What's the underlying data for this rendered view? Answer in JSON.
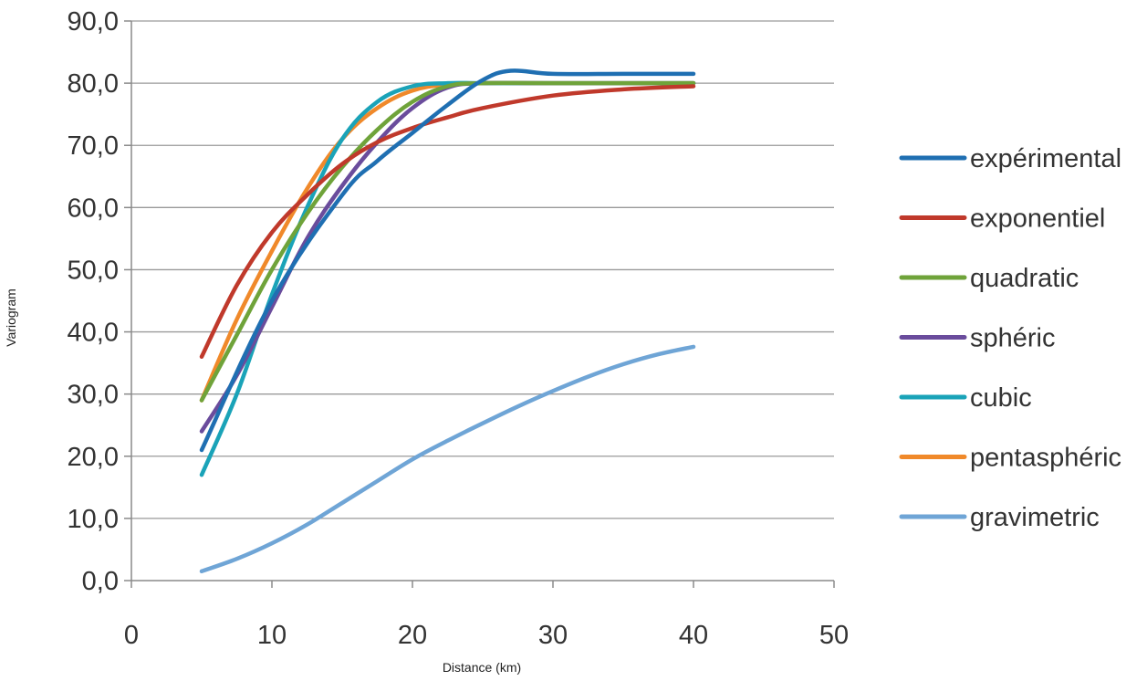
{
  "chart_data": {
    "type": "line",
    "title": "",
    "xlabel": "Distance (km)",
    "ylabel": "Variogram",
    "xlim": [
      0,
      50
    ],
    "ylim": [
      0,
      90
    ],
    "x_ticks": [
      {
        "value": 0,
        "label": "0"
      },
      {
        "value": 10,
        "label": "10"
      },
      {
        "value": 20,
        "label": "20"
      },
      {
        "value": 30,
        "label": "30"
      },
      {
        "value": 40,
        "label": "40"
      },
      {
        "value": 50,
        "label": "50"
      }
    ],
    "y_ticks": [
      {
        "value": 0,
        "label": "0,0"
      },
      {
        "value": 10,
        "label": "10,0"
      },
      {
        "value": 20,
        "label": "20,0"
      },
      {
        "value": 30,
        "label": "30,0"
      },
      {
        "value": 40,
        "label": "40,0"
      },
      {
        "value": 50,
        "label": "50,0"
      },
      {
        "value": 60,
        "label": "60,0"
      },
      {
        "value": 70,
        "label": "70,0"
      },
      {
        "value": 80,
        "label": "80,0"
      },
      {
        "value": 90,
        "label": "90,0"
      }
    ],
    "grid": "horizontal",
    "legend_position": "right",
    "series": [
      {
        "name": "expérimental",
        "color": "#1f6fb2",
        "x": [
          5,
          10,
          15,
          17.5,
          20,
          22.5,
          25,
          27,
          30,
          35,
          40
        ],
        "y": [
          21,
          45,
          62,
          67.5,
          72,
          76.5,
          80.5,
          82,
          81.5,
          81.5,
          81.5
        ]
      },
      {
        "name": "exponentiel",
        "color": "#c0392b",
        "x": [
          5,
          7.5,
          10,
          12.5,
          15,
          17.5,
          20,
          22.5,
          25,
          30,
          35,
          40
        ],
        "y": [
          36,
          47.5,
          56,
          62,
          67,
          70.5,
          72.8,
          74.5,
          76,
          78,
          79,
          79.5
        ]
      },
      {
        "name": "quadratic",
        "color": "#6fa33a",
        "x": [
          5,
          7.5,
          10,
          12.5,
          15,
          17.5,
          20,
          22.5,
          25,
          30,
          40
        ],
        "y": [
          29,
          39.5,
          50,
          59,
          66.5,
          72.5,
          77,
          79.5,
          80,
          80,
          80
        ]
      },
      {
        "name": "sphéric",
        "color": "#6a4c9c",
        "x": [
          5,
          7.5,
          10,
          12.5,
          15,
          17.5,
          20,
          22.5,
          25,
          30,
          40
        ],
        "y": [
          24,
          33,
          44,
          55,
          63.5,
          70.5,
          76,
          79.3,
          80,
          80,
          80
        ]
      },
      {
        "name": "cubic",
        "color": "#1aa3b8",
        "x": [
          5,
          7.5,
          10,
          12.5,
          15,
          17.5,
          20,
          22.5,
          25,
          30,
          40
        ],
        "y": [
          17,
          30,
          46,
          60,
          71,
          77,
          79.5,
          80,
          80,
          80,
          80
        ]
      },
      {
        "name": "pentasphéric",
        "color": "#f0892a",
        "x": [
          5,
          7.5,
          10,
          12.5,
          15,
          17.5,
          20,
          22.5,
          25,
          30,
          40
        ],
        "y": [
          29,
          42,
          53,
          63,
          71,
          76,
          78.8,
          79.8,
          80,
          80,
          80
        ]
      },
      {
        "name": "gravimetric",
        "color": "#6fa5d6",
        "x": [
          5,
          7.5,
          10,
          12.5,
          15,
          17.5,
          20,
          22.5,
          25,
          27.5,
          30,
          32.5,
          35,
          37.5,
          40
        ],
        "y": [
          1.5,
          3.5,
          6,
          9,
          12.5,
          16,
          19.5,
          22.5,
          25.3,
          28,
          30.5,
          32.8,
          34.8,
          36.4,
          37.6
        ]
      }
    ]
  }
}
